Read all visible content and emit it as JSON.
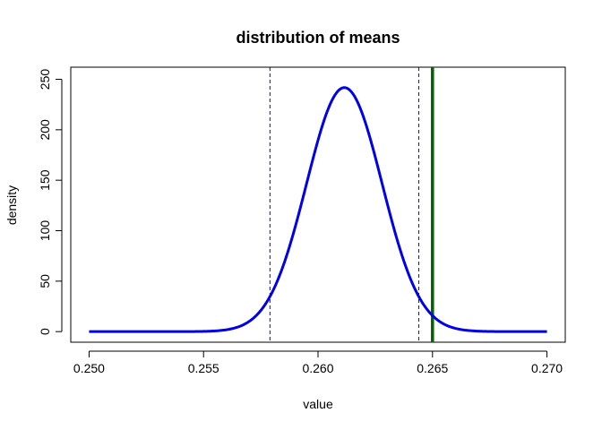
{
  "chart_data": {
    "type": "line",
    "title": "distribution of means",
    "xlabel": "value",
    "ylabel": "density",
    "xlim": [
      0.2492,
      0.2708
    ],
    "ylim": [
      -10.5,
      262
    ],
    "x_ticks": [
      0.25,
      0.255,
      0.26,
      0.265,
      0.27
    ],
    "x_tick_labels": [
      "0.250",
      "0.255",
      "0.260",
      "0.265",
      "0.270"
    ],
    "y_ticks": [
      0,
      50,
      100,
      150,
      200,
      250
    ],
    "y_tick_labels": [
      "0",
      "50",
      "100",
      "150",
      "200",
      "250"
    ],
    "grid": false,
    "series": [
      {
        "type": "density-curve",
        "color": "#0000ee",
        "mean": 0.26115,
        "sd": 0.00165,
        "x_range": [
          0.25,
          0.27
        ],
        "peak_density": 241.8
      }
    ],
    "vlines": [
      {
        "x": 0.2579,
        "color": "#0000ee",
        "style": "dashed"
      },
      {
        "x": 0.2644,
        "color": "#0000ee",
        "style": "dashed"
      },
      {
        "x": 0.265,
        "color": "#006400",
        "style": "solid-thick"
      }
    ]
  }
}
